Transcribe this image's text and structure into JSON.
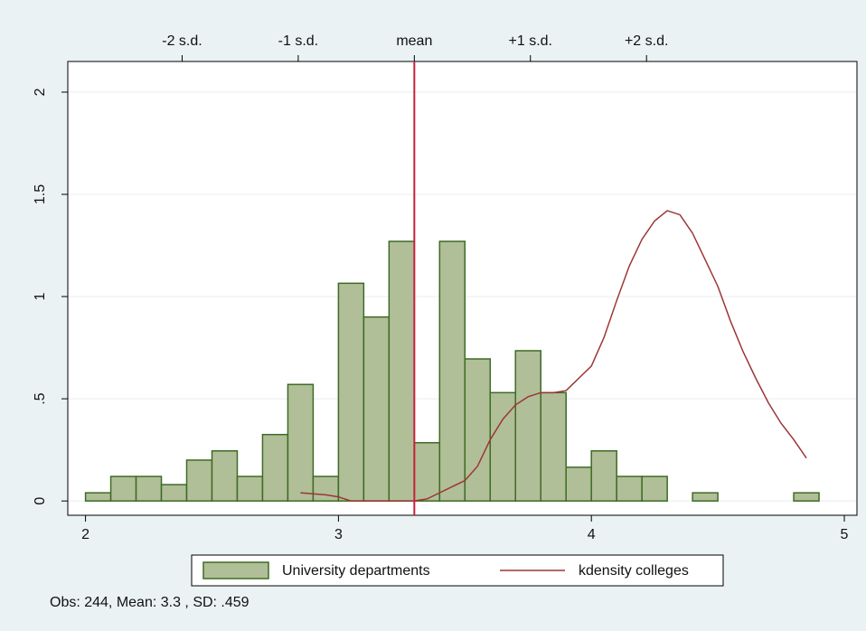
{
  "chart_data": {
    "type": "histogram",
    "note": "Obs: 244,  Mean:   3.3 , SD:  .459",
    "xlim": [
      1.93,
      5.05
    ],
    "ylim": [
      -0.07,
      2.15
    ],
    "xticks": [
      2,
      3,
      4,
      5
    ],
    "yticks": [
      0,
      {
        "value": 0.5,
        "label": ".5"
      },
      1,
      1.5,
      2
    ],
    "x2ticks": [
      {
        "value": 2.382,
        "label": "-2 s.d."
      },
      {
        "value": 2.841,
        "label": "-1 s.d."
      },
      {
        "value": 3.3,
        "label": "mean"
      },
      {
        "value": 3.759,
        "label": "+1 s.d."
      },
      {
        "value": 4.218,
        "label": "+2 s.d."
      }
    ],
    "mean_line_color": "#c8203c",
    "grid": true,
    "legend": "bottom",
    "series": [
      {
        "name": "University departments",
        "type": "histogram",
        "color": "#b0bf98",
        "edgecolor": "#3e6b24",
        "bins": [
          2.0,
          2.1,
          2.2,
          2.3,
          2.4,
          2.5,
          2.6,
          2.7,
          2.8,
          2.9,
          3.0,
          3.1,
          3.2,
          3.3,
          3.4,
          3.5,
          3.6,
          3.7,
          3.8,
          3.9,
          4.0,
          4.1,
          4.2,
          4.3,
          4.4,
          4.5,
          4.6,
          4.7,
          4.8,
          4.9
        ],
        "values": [
          0.04,
          0.12,
          0.12,
          0.08,
          0.2,
          0.245,
          0.12,
          0.325,
          0.57,
          0.12,
          1.065,
          0.9,
          1.27,
          0.285,
          1.27,
          0.695,
          0.53,
          0.735,
          0.53,
          0.165,
          0.245,
          0.12,
          0.12,
          0,
          0.04,
          0,
          0,
          0,
          0.04
        ]
      },
      {
        "name": "kdensity colleges",
        "type": "line",
        "color": "#9e3535",
        "x": [
          2.85,
          2.95,
          3.0,
          3.05,
          3.1,
          3.2,
          3.3,
          3.35,
          3.4,
          3.45,
          3.5,
          3.55,
          3.6,
          3.65,
          3.7,
          3.75,
          3.8,
          3.85,
          3.9,
          3.95,
          4.0,
          4.05,
          4.1,
          4.15,
          4.2,
          4.25,
          4.3,
          4.35,
          4.4,
          4.45,
          4.5,
          4.55,
          4.6,
          4.65,
          4.7,
          4.75,
          4.8,
          4.85
        ],
        "values": [
          0.04,
          0.03,
          0.02,
          0.0,
          0.0,
          0.0,
          0.0,
          0.01,
          0.04,
          0.07,
          0.1,
          0.17,
          0.3,
          0.4,
          0.47,
          0.51,
          0.53,
          0.53,
          0.54,
          0.6,
          0.66,
          0.8,
          0.98,
          1.15,
          1.28,
          1.37,
          1.42,
          1.4,
          1.31,
          1.18,
          1.05,
          0.88,
          0.73,
          0.6,
          0.48,
          0.38,
          0.3,
          0.21
        ]
      }
    ]
  }
}
